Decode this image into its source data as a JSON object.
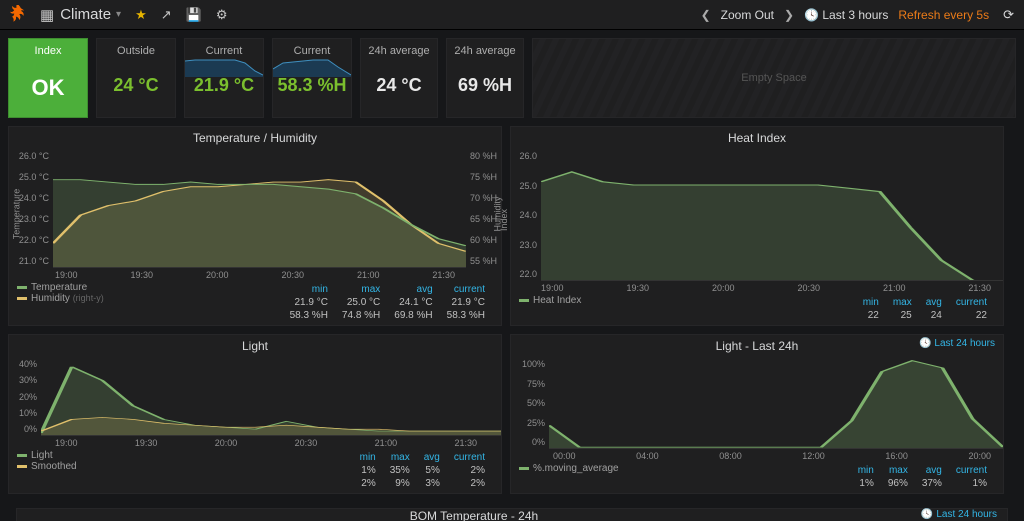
{
  "topbar": {
    "dashboard_title": "Climate",
    "zoom_out": "Zoom Out",
    "time_range": "Last 3 hours",
    "refresh": "Refresh every 5s"
  },
  "stats": {
    "index": {
      "title": "Index",
      "value": "OK"
    },
    "outside": {
      "title": "Outside",
      "value": "24 °C",
      "color": "#7bbf2e"
    },
    "current_temp": {
      "title": "Current",
      "value": "21.9 °C",
      "color": "#7bbf2e"
    },
    "current_hum": {
      "title": "Current",
      "value": "58.3 %H",
      "color": "#7bbf2e"
    },
    "avg_temp": {
      "title": "24h average",
      "value": "24 °C",
      "color": "#e8e8e8"
    },
    "avg_hum": {
      "title": "24h average",
      "value": "69 %H",
      "color": "#e8e8e8"
    },
    "empty": "Empty Space"
  },
  "temphum": {
    "title": "Temperature / Humidity",
    "ylabel_left": "Temperature",
    "ylabel_right": "Humidity",
    "left_ticks": [
      "26.0 °C",
      "25.0 °C",
      "24.0 °C",
      "23.0 °C",
      "22.0 °C",
      "21.0 °C"
    ],
    "right_ticks": [
      "80 %H",
      "75 %H",
      "70 %H",
      "65 %H",
      "60 %H",
      "55 %H"
    ],
    "x_ticks": [
      "19:00",
      "19:30",
      "20:00",
      "20:30",
      "21:00",
      "21:30"
    ],
    "series": {
      "temperature": {
        "label": "Temperature",
        "color": "#7eb26d",
        "points": [
          24.7,
          24.7,
          24.6,
          24.5,
          24.5,
          24.6,
          24.5,
          24.5,
          24.5,
          24.4,
          24.3,
          24.1,
          23.5,
          22.8,
          22.2,
          21.9
        ]
      },
      "humidity": {
        "label": "Humidity",
        "color": "#e0c06b",
        "note": "(right-y)",
        "points": [
          60,
          66,
          68,
          69,
          71,
          72,
          72,
          72.5,
          73,
          73,
          73.5,
          73,
          69,
          64,
          60,
          58.3
        ]
      }
    },
    "stats_headers": [
      "min",
      "max",
      "avg",
      "current"
    ],
    "stats_rows": [
      [
        "21.9 °C",
        "25.0 °C",
        "24.1 °C",
        "21.9 °C"
      ],
      [
        "58.3 %H",
        "74.8 %H",
        "69.8 %H",
        "58.3 %H"
      ]
    ]
  },
  "heat": {
    "title": "Heat Index",
    "ylabel": "Index",
    "left_ticks": [
      "26.0",
      "25.0",
      "24.0",
      "23.0",
      "22.0"
    ],
    "x_ticks": [
      "19:00",
      "19:30",
      "20:00",
      "20:30",
      "21:00",
      "21:30"
    ],
    "series": {
      "heat_index": {
        "label": "Heat Index",
        "color": "#7eb26d",
        "points": [
          25.0,
          25.3,
          25.0,
          24.9,
          24.9,
          24.9,
          24.9,
          24.9,
          24.9,
          24.9,
          24.8,
          24.7,
          23.6,
          22.6,
          22.0,
          21.7
        ]
      }
    },
    "stats_headers": [
      "min",
      "max",
      "avg",
      "current"
    ],
    "stats_rows": [
      [
        "22",
        "25",
        "24",
        "22"
      ]
    ]
  },
  "light": {
    "title": "Light",
    "left_ticks": [
      "40%",
      "30%",
      "20%",
      "10%",
      "0%"
    ],
    "x_ticks": [
      "19:00",
      "19:30",
      "20:00",
      "20:30",
      "21:00",
      "21:30"
    ],
    "series": {
      "light": {
        "label": "Light",
        "color": "#7eb26d",
        "points": [
          1,
          35,
          28,
          15,
          8,
          5,
          4,
          3,
          7,
          4,
          3,
          2,
          2,
          2,
          2,
          2
        ]
      },
      "smoothed": {
        "label": "Smoothed",
        "color": "#e0c06b",
        "points": [
          2,
          8,
          9,
          8,
          6,
          5,
          4,
          4,
          5,
          4,
          3,
          3,
          2,
          2,
          2,
          2
        ]
      }
    },
    "stats_headers": [
      "min",
      "max",
      "avg",
      "current"
    ],
    "stats_rows": [
      [
        "1%",
        "35%",
        "5%",
        "2%"
      ],
      [
        "2%",
        "9%",
        "3%",
        "2%"
      ]
    ]
  },
  "light24": {
    "title": "Light - Last 24h",
    "link": "Last 24 hours",
    "left_ticks": [
      "100%",
      "75%",
      "50%",
      "25%",
      "0%"
    ],
    "x_ticks": [
      "00:00",
      "04:00",
      "08:00",
      "12:00",
      "16:00",
      "20:00"
    ],
    "series": {
      "moving_average": {
        "label": "%.moving_average",
        "color": "#7eb26d",
        "points": [
          25,
          1,
          1,
          1,
          1,
          1,
          1,
          1,
          1,
          1,
          30,
          84,
          96,
          88,
          32,
          1
        ]
      }
    },
    "stats_headers": [
      "min",
      "max",
      "avg",
      "current"
    ],
    "stats_rows": [
      [
        "1%",
        "96%",
        "37%",
        "1%"
      ]
    ]
  },
  "bottom": {
    "title": "BOM Temperature - 24h",
    "link": "Last 24 hours"
  }
}
